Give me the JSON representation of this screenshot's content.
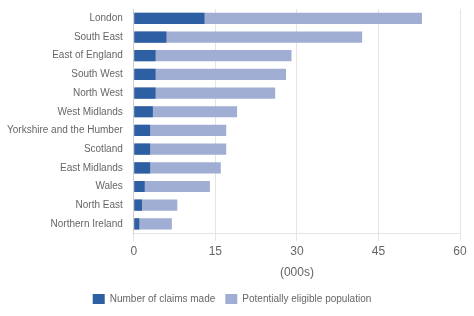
{
  "chart_data": {
    "type": "bar",
    "orientation": "horizontal",
    "categories": [
      "Northern Ireland",
      "North East",
      "Wales",
      "East Midlands",
      "Scotland",
      "Yorkshire and the Humber",
      "West Midlands",
      "North West",
      "South West",
      "East of England",
      "South East",
      "London"
    ],
    "series": [
      {
        "name": "Potentially eligible population",
        "color": "#a0aed4",
        "values": [
          7,
          8,
          14,
          16,
          17,
          17,
          19,
          26,
          28,
          29,
          42,
          53
        ]
      },
      {
        "name": "Number of claims made",
        "color": "#2e5fa3",
        "values": [
          1,
          1.5,
          2,
          3,
          3,
          3,
          3.5,
          4,
          4,
          4,
          6,
          13
        ]
      }
    ],
    "xlabel": "(000s)",
    "xlim": [
      0,
      60
    ],
    "xticks": [
      0,
      15,
      30,
      45,
      60
    ],
    "grid": true,
    "legend": "bottom"
  }
}
